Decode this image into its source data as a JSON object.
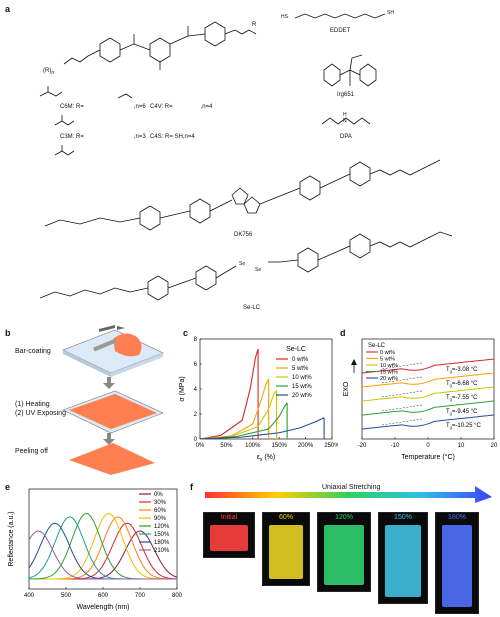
{
  "panel_a": {
    "label": "a",
    "r_labels": {
      "r1": "R",
      "r2": "R",
      "n1": "n",
      "n2": "n"
    },
    "variants": [
      {
        "name": "C6M: R=",
        "n": ",n=6"
      },
      {
        "name": "C4V: R=",
        "n": ",n=4"
      },
      {
        "name": "C3M: R=",
        "n": ",n=3"
      },
      {
        "name": "C4S: R= SH",
        "n": ",n=4"
      }
    ],
    "eddet": {
      "name": "EDDET",
      "sh": "SH",
      "hs": "HS"
    },
    "irg": "Irg651",
    "dpa": {
      "name": "DPA",
      "nh": "N",
      "h": "H"
    },
    "dk756": "DK756",
    "selc": {
      "name": "Se-LC",
      "se": "Se"
    }
  },
  "panel_b": {
    "label": "b",
    "steps": [
      "Bar-coating",
      "(1) Heating\n(2) UV Exposing",
      "Peeling off"
    ]
  },
  "panel_c": {
    "label": "c",
    "chart_data": {
      "type": "line",
      "legend_title": "Se-LC",
      "xlabel": "ε",
      "xlabel_sub": "x",
      "xlabel_unit": " (%)",
      "ylabel": "σ (MPa)",
      "xlim": [
        0,
        250
      ],
      "ylim": [
        0,
        8
      ],
      "xticks": [
        "0%",
        "50%",
        "100%",
        "150%",
        "200%",
        "250%"
      ],
      "yticks": [
        "0",
        "2",
        "4",
        "6",
        "8"
      ],
      "series": [
        {
          "name": "0 wt%",
          "color": "#d62728",
          "x": [
            0,
            40,
            80,
            95,
            105,
            110
          ],
          "y": [
            0,
            0.3,
            1.5,
            4,
            6.5,
            7.2
          ]
        },
        {
          "name": "5 wt%",
          "color": "#ff9f00",
          "x": [
            0,
            60,
            100,
            115,
            125,
            130
          ],
          "y": [
            0,
            0.25,
            1.2,
            3,
            4.4,
            4.8
          ]
        },
        {
          "name": "10 wt%",
          "color": "#c8c800",
          "x": [
            0,
            60,
            110,
            130,
            140,
            145
          ],
          "y": [
            0,
            0.2,
            1.0,
            2.4,
            3.6,
            3.9
          ]
        },
        {
          "name": "15 wt%",
          "color": "#2ca02c",
          "x": [
            0,
            70,
            130,
            150,
            160,
            165
          ],
          "y": [
            0,
            0.2,
            0.8,
            1.8,
            2.6,
            2.9
          ]
        },
        {
          "name": "20 wt%",
          "color": "#1f4e9e",
          "x": [
            0,
            80,
            150,
            190,
            220,
            235
          ],
          "y": [
            0,
            0.15,
            0.5,
            0.9,
            1.4,
            1.7
          ]
        }
      ]
    }
  },
  "panel_d": {
    "label": "d",
    "chart_data": {
      "type": "line",
      "legend_title": "Se-LC",
      "xlabel": "Temperature (°C)",
      "ylabel": "EXO",
      "xlim": [
        -20,
        20
      ],
      "xticks": [
        "-20",
        "-10",
        "0",
        "10",
        "20"
      ],
      "series": [
        {
          "name": "0 wt%",
          "color": "#d62728",
          "tg": "T",
          "tg_val": "=-3.08 °C"
        },
        {
          "name": "5 wt%",
          "color": "#ff9f00",
          "tg": "T",
          "tg_val": "=-6.68 °C"
        },
        {
          "name": "10 wt%",
          "color": "#c8c800",
          "tg": "T",
          "tg_val": "=-7.55 °C"
        },
        {
          "name": "15 wt%",
          "color": "#2ca02c",
          "tg": "T",
          "tg_val": "=-9.45 °C"
        },
        {
          "name": "20 wt%",
          "color": "#1f4e9e",
          "tg": "T",
          "tg_val": "=-10.25 °C"
        }
      ],
      "tg_sub": "g"
    }
  },
  "panel_e": {
    "label": "e",
    "chart_data": {
      "type": "line",
      "xlabel": "Wavelength (nm)",
      "ylabel": "Reflectance (a.u.)",
      "xlim": [
        400,
        800
      ],
      "xticks": [
        "400",
        "500",
        "600",
        "700",
        "800"
      ],
      "series": [
        {
          "name": "0%",
          "color": "#8b1a3a",
          "peak": 700
        },
        {
          "name": "30%",
          "color": "#d62728",
          "peak": 665
        },
        {
          "name": "60%",
          "color": "#ff7f0e",
          "peak": 640
        },
        {
          "name": "90%",
          "color": "#f0c000",
          "peak": 615
        },
        {
          "name": "120%",
          "color": "#2ca02c",
          "peak": 555
        },
        {
          "name": "150%",
          "color": "#17a589",
          "peak": 510
        },
        {
          "name": "180%",
          "color": "#1f4e9e",
          "peak": 470
        },
        {
          "name": "210%",
          "color": "#9b59b6",
          "peak": 425
        }
      ]
    }
  },
  "panel_f": {
    "label": "f",
    "title": "Uniaxial Stretching",
    "frames": [
      {
        "label": "Initial",
        "color": "#ff4040"
      },
      {
        "label": "60%",
        "color": "#e8d020"
      },
      {
        "label": "120%",
        "color": "#30d070"
      },
      {
        "label": "150%",
        "color": "#40c0e0"
      },
      {
        "label": "180%",
        "color": "#5070ff"
      }
    ]
  }
}
